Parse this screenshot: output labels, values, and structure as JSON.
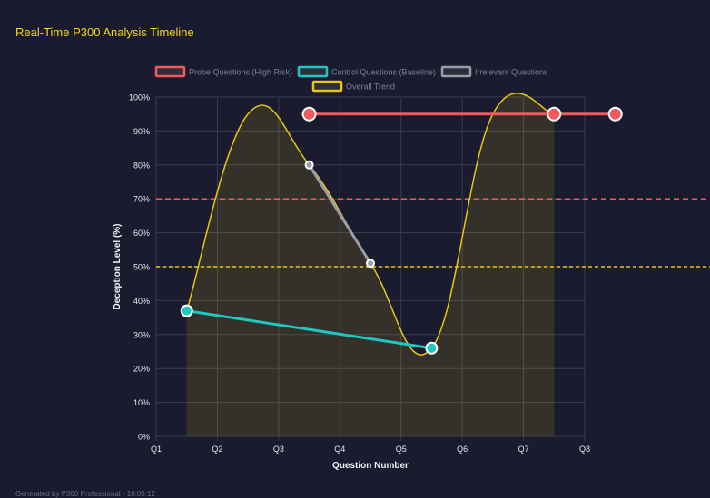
{
  "title": "Real-Time P300 Analysis Timeline",
  "footer": "Generated by P300 Professional - 10:05:12",
  "chart_data": {
    "type": "line",
    "title": "",
    "xlabel": "Question Number",
    "ylabel": "Deception Level (%)",
    "categories": [
      "Q1",
      "Q2",
      "Q3",
      "Q4",
      "Q5",
      "Q6",
      "Q7",
      "Q8"
    ],
    "yticks": [
      "0%",
      "10%",
      "20%",
      "30%",
      "40%",
      "50%",
      "60%",
      "70%",
      "80%",
      "90%",
      "100%"
    ],
    "ylim": [
      0,
      100
    ],
    "grid": true,
    "legend_position": "top",
    "series": [
      {
        "name": "Probe Questions (High Risk)",
        "color": "#f05a5e",
        "x": [
          1.5,
          5.5,
          6.5
        ],
        "y": [
          95,
          95,
          95
        ]
      },
      {
        "name": "Control Questions (Baseline)",
        "color": "#1ec8c0",
        "x": [
          -0.5,
          3.5
        ],
        "y": [
          37,
          26
        ]
      },
      {
        "name": "Irrelevant Questions",
        "color": "#9a9ca8",
        "x": [
          1.5,
          2.5
        ],
        "y": [
          80,
          51
        ]
      },
      {
        "name": "Overall Trend",
        "color": "#e8c70c",
        "x": [
          -0.5,
          0.5,
          1.5,
          2.5,
          3.5,
          4.5,
          5.5
        ],
        "y": [
          37,
          95,
          80,
          51,
          26,
          95,
          95
        ]
      }
    ],
    "thresholds": [
      {
        "value": 70,
        "color": "#f05a5e",
        "style": "dashed"
      },
      {
        "value": 50,
        "color": "#e8c70c",
        "style": "dashed"
      }
    ]
  }
}
